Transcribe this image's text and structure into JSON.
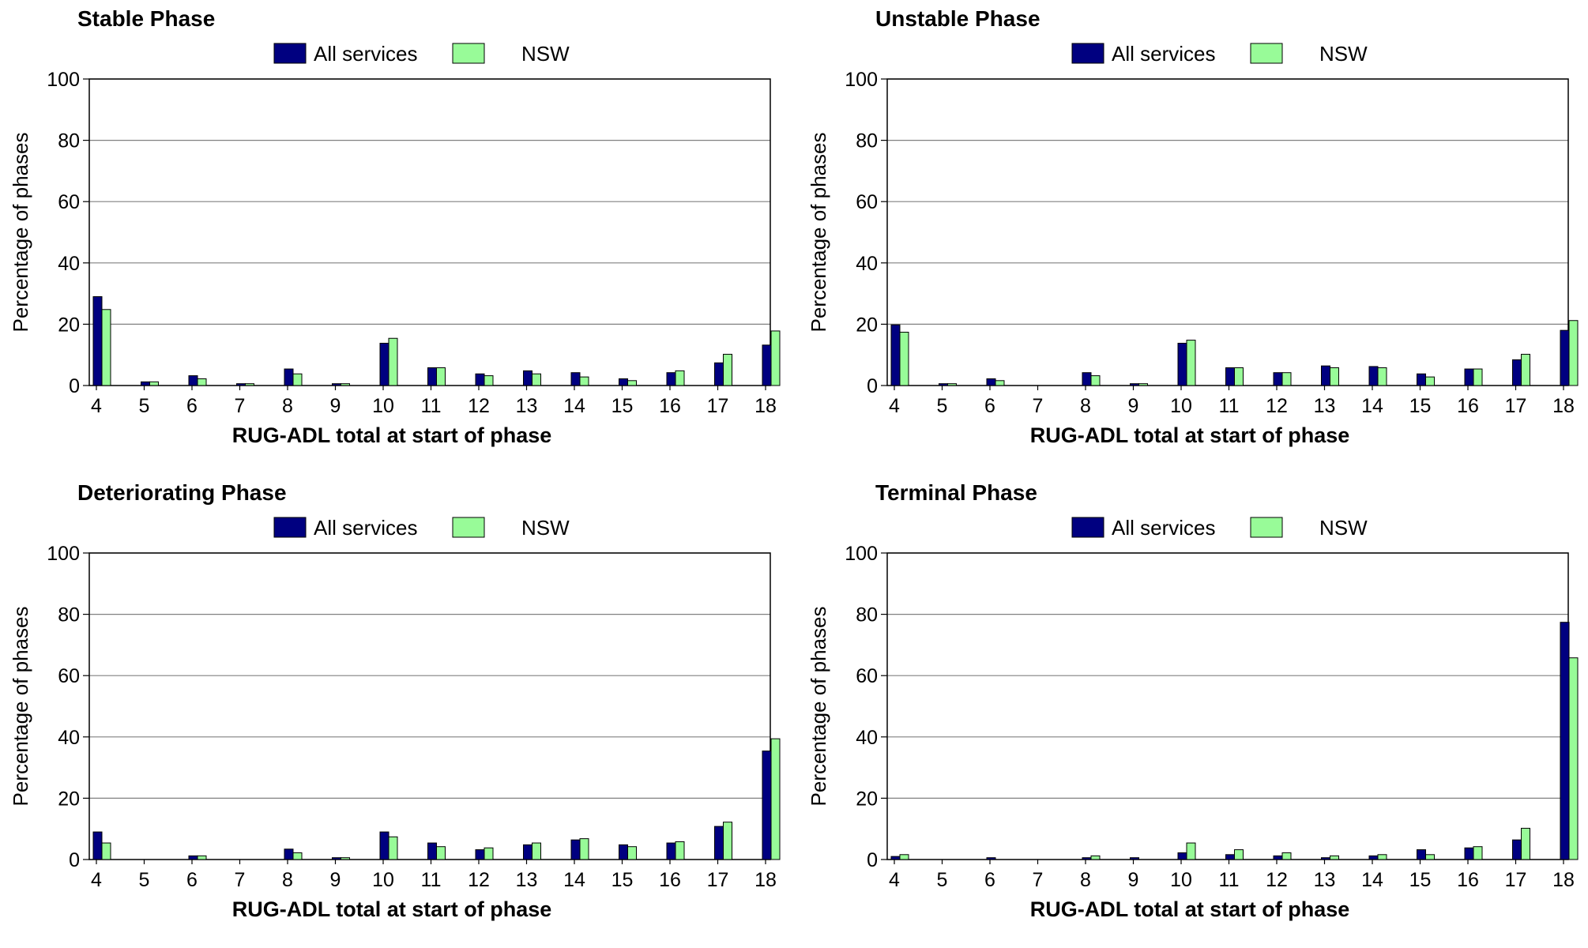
{
  "legend_labels": [
    "All services",
    "NSW"
  ],
  "colors": {
    "all_services": "#000080",
    "nsw": "#98FB98",
    "axis": "#000000",
    "grid": "#808080"
  },
  "chart_data": [
    {
      "type": "bar",
      "title": "Stable Phase",
      "xlabel": "RUG-ADL total at start of phase",
      "ylabel": "Percentage of phases",
      "ylim": [
        0,
        100
      ],
      "yticks": [
        0,
        20,
        40,
        60,
        80,
        100
      ],
      "grid": true,
      "legend": "top",
      "categories": [
        "4",
        "5",
        "6",
        "7",
        "8",
        "9",
        "10",
        "11",
        "12",
        "13",
        "14",
        "15",
        "16",
        "17",
        "18"
      ],
      "series": [
        {
          "name": "All services",
          "values": [
            29,
            1.2,
            3.2,
            0.6,
            5.4,
            0.6,
            13.8,
            5.8,
            3.8,
            4.8,
            4.2,
            2.2,
            4.2,
            7.4,
            13.2
          ]
        },
        {
          "name": "NSW",
          "values": [
            24.8,
            1.2,
            2.2,
            0.6,
            3.8,
            0.6,
            15.4,
            5.8,
            3.2,
            3.8,
            2.8,
            1.6,
            4.8,
            10.2,
            17.8
          ]
        }
      ]
    },
    {
      "type": "bar",
      "title": "Unstable Phase",
      "xlabel": "RUG-ADL total at start of phase",
      "ylabel": "Percentage of phases",
      "ylim": [
        0,
        100
      ],
      "yticks": [
        0,
        20,
        40,
        60,
        80,
        100
      ],
      "grid": true,
      "legend": "top",
      "categories": [
        "4",
        "5",
        "6",
        "7",
        "8",
        "9",
        "10",
        "11",
        "12",
        "13",
        "14",
        "15",
        "16",
        "17",
        "18"
      ],
      "series": [
        {
          "name": "All services",
          "values": [
            19.8,
            0.6,
            2.2,
            0,
            4.2,
            0.6,
            13.8,
            5.8,
            4.2,
            6.4,
            6.2,
            3.8,
            5.4,
            8.4,
            18
          ]
        },
        {
          "name": "NSW",
          "values": [
            17.4,
            0.6,
            1.6,
            0,
            3.2,
            0.6,
            14.8,
            5.8,
            4.2,
            5.8,
            5.8,
            2.8,
            5.4,
            10.2,
            21.2
          ]
        }
      ]
    },
    {
      "type": "bar",
      "title": "Deteriorating Phase",
      "xlabel": "RUG-ADL total at start of phase",
      "ylabel": "Percentage of phases",
      "ylim": [
        0,
        100
      ],
      "yticks": [
        0,
        20,
        40,
        60,
        80,
        100
      ],
      "grid": true,
      "legend": "top",
      "categories": [
        "4",
        "5",
        "6",
        "7",
        "8",
        "9",
        "10",
        "11",
        "12",
        "13",
        "14",
        "15",
        "16",
        "17",
        "18"
      ],
      "series": [
        {
          "name": "All services",
          "values": [
            9,
            0,
            1.2,
            0,
            3.4,
            0.6,
            9,
            5.4,
            3.2,
            4.8,
            6.4,
            4.8,
            5.4,
            10.8,
            35.4
          ]
        },
        {
          "name": "NSW",
          "values": [
            5.4,
            0,
            1.2,
            0,
            2.2,
            0.6,
            7.4,
            4.2,
            3.8,
            5.4,
            6.8,
            4.2,
            5.8,
            12.2,
            39.4
          ]
        }
      ]
    },
    {
      "type": "bar",
      "title": "Terminal Phase",
      "xlabel": "RUG-ADL total at start of phase",
      "ylabel": "Percentage of phases",
      "ylim": [
        0,
        100
      ],
      "yticks": [
        0,
        20,
        40,
        60,
        80,
        100
      ],
      "grid": true,
      "legend": "top",
      "categories": [
        "4",
        "5",
        "6",
        "7",
        "8",
        "9",
        "10",
        "11",
        "12",
        "13",
        "14",
        "15",
        "16",
        "17",
        "18"
      ],
      "series": [
        {
          "name": "All services",
          "values": [
            1,
            0,
            0.6,
            0,
            0.6,
            0.6,
            2.2,
            1.6,
            1.2,
            0.6,
            1.2,
            3.2,
            3.8,
            6.4,
            77.4
          ]
        },
        {
          "name": "NSW",
          "values": [
            1.6,
            0,
            0,
            0,
            1.2,
            0,
            5.4,
            3.2,
            2.2,
            1.2,
            1.6,
            1.6,
            4.2,
            10.2,
            65.8
          ]
        }
      ]
    }
  ]
}
